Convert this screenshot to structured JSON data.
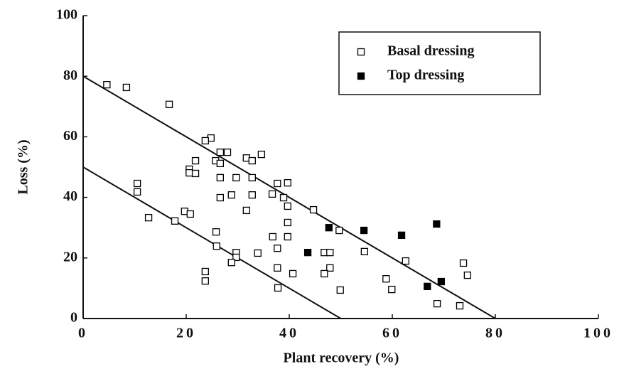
{
  "chart_data": {
    "type": "scatter",
    "xlabel": "Plant recovery (%)",
    "ylabel": "Loss (%)",
    "xlim": [
      0,
      100
    ],
    "ylim": [
      0,
      100
    ],
    "xticks": [
      0,
      20,
      40,
      60,
      80,
      100
    ],
    "yticks": [
      0,
      20,
      40,
      60,
      80,
      100
    ],
    "legend": "upper right",
    "series": [
      {
        "name": "Basal dressing",
        "color": "#000000",
        "marker": "open-square",
        "x": [
          4.6,
          8.4,
          16.7,
          24.8,
          23.7,
          25.7,
          21.8,
          26.6,
          26.6,
          28,
          31.7,
          32.8,
          34.6,
          20.6,
          20.6,
          21.8,
          26.6,
          29.7,
          32.8,
          37.7,
          39.7,
          10.5,
          10.5,
          26.6,
          28.8,
          32.8,
          36.7,
          38.9,
          39.7,
          12.7,
          19.7,
          20.8,
          17.8,
          31.7,
          44.7,
          39.7,
          25.8,
          49.7,
          36.8,
          39.7,
          25.9,
          37.7,
          29.7,
          33.9,
          46.8,
          47.9,
          54.6,
          29.7,
          62.6,
          73.8,
          28.8,
          37.7,
          47.9,
          46.8,
          40.7,
          23.7,
          74.6,
          23.7,
          58.8,
          59.9,
          37.8,
          49.9,
          68.7,
          73.1
        ],
        "values": [
          77.2,
          76.3,
          70.7,
          59.6,
          58.7,
          52.1,
          52.1,
          51.2,
          54.9,
          54.9,
          53,
          52.1,
          54.2,
          49.3,
          48.1,
          47.9,
          46.5,
          46.5,
          46.5,
          44.6,
          44.8,
          44.6,
          41.8,
          39.9,
          40.8,
          40.8,
          41.1,
          39.9,
          37.1,
          33.3,
          35.4,
          34.5,
          32.2,
          35.7,
          35.9,
          31.7,
          28.6,
          29.1,
          27,
          27,
          23.9,
          23.2,
          21.8,
          21.6,
          21.8,
          21.8,
          22.1,
          20.2,
          19,
          18.3,
          18.5,
          16.7,
          16.7,
          14.8,
          14.8,
          15.5,
          14.3,
          12.4,
          13.1,
          9.6,
          10.1,
          9.4,
          4.9,
          4.2
        ]
      },
      {
        "name": "Top dressing",
        "color": "#000000",
        "marker": "filled-square",
        "x": [
          43.6,
          47.7,
          54.5,
          61.8,
          68.6,
          66.8,
          69.5
        ],
        "values": [
          21.8,
          30,
          29.1,
          27.5,
          31.2,
          10.6,
          12.2
        ]
      }
    ],
    "reference_lines": [
      {
        "x": [
          0,
          80
        ],
        "y": [
          80,
          0
        ]
      },
      {
        "x": [
          0,
          50
        ],
        "y": [
          50,
          0
        ]
      }
    ]
  }
}
